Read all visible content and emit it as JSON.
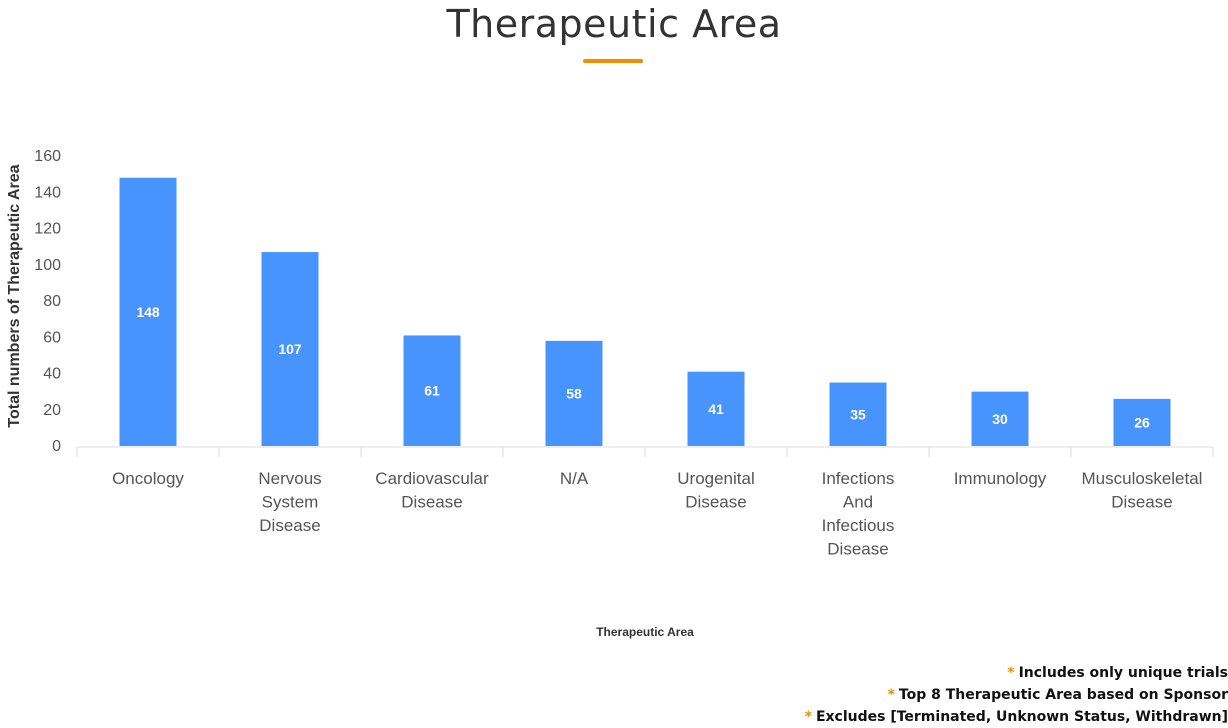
{
  "page": {
    "title": "Therapeutic Area"
  },
  "colors": {
    "accent": "#F28C00",
    "bar": "#4894FE",
    "bar_label": "#FFFFFF",
    "axis_text": "#555555",
    "axis_title": "#333333",
    "axis_line": "#DDDDDD"
  },
  "chart_data": {
    "type": "bar",
    "title": "",
    "xlabel": "Therapeutic Area",
    "ylabel": "Total numbers of Therapeutic Area",
    "ylim": [
      0,
      160
    ],
    "yticks": [
      0,
      20,
      40,
      60,
      80,
      100,
      120,
      140,
      160
    ],
    "grid": false,
    "categories": [
      [
        "Oncology"
      ],
      [
        "Nervous",
        "System",
        "Disease"
      ],
      [
        "Cardiovascular",
        "Disease"
      ],
      [
        "N/A"
      ],
      [
        "Urogenital",
        "Disease"
      ],
      [
        "Infections",
        "And",
        "Infectious",
        "Disease"
      ],
      [
        "Immunology"
      ],
      [
        "Musculoskeletal",
        "Disease"
      ]
    ],
    "values": [
      148,
      107,
      61,
      58,
      41,
      35,
      30,
      26
    ],
    "data_labels": [
      "148",
      "107",
      "61",
      "58",
      "41",
      "35",
      "30",
      "26"
    ]
  },
  "footnotes": {
    "star": "*",
    "items": [
      "Includes only unique trials",
      "Top 8 Therapeutic Area based on Sponsor",
      "Excludes [Terminated, Unknown Status, Withdrawn]"
    ]
  }
}
